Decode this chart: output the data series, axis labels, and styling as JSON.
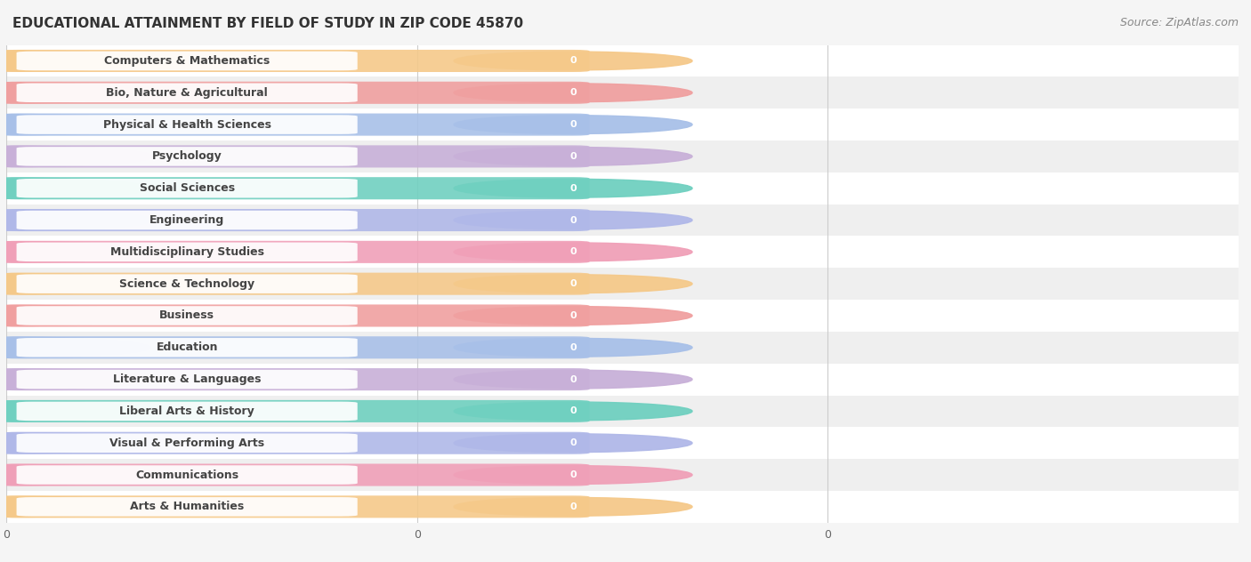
{
  "title": "EDUCATIONAL ATTAINMENT BY FIELD OF STUDY IN ZIP CODE 45870",
  "source": "Source: ZipAtlas.com",
  "categories": [
    "Computers & Mathematics",
    "Bio, Nature & Agricultural",
    "Physical & Health Sciences",
    "Psychology",
    "Social Sciences",
    "Engineering",
    "Multidisciplinary Studies",
    "Science & Technology",
    "Business",
    "Education",
    "Literature & Languages",
    "Liberal Arts & History",
    "Visual & Performing Arts",
    "Communications",
    "Arts & Humanities"
  ],
  "values": [
    0,
    0,
    0,
    0,
    0,
    0,
    0,
    0,
    0,
    0,
    0,
    0,
    0,
    0,
    0
  ],
  "bar_colors": [
    "#f5c98a",
    "#f0a0a0",
    "#a8c0e8",
    "#c8b0d8",
    "#70d0c0",
    "#b0b8e8",
    "#f0a0b8",
    "#f5c98a",
    "#f0a0a0",
    "#a8c0e8",
    "#c8b0d8",
    "#70d0c0",
    "#b0b8e8",
    "#f0a0b8",
    "#f5c98a"
  ],
  "background_color": "#f5f5f5",
  "row_bg_even": "#ffffff",
  "row_bg_odd": "#efefef",
  "grid_color": "#cccccc",
  "xlim_max": 3,
  "title_fontsize": 11,
  "source_fontsize": 9,
  "bar_label_fontsize": 8,
  "category_fontsize": 9,
  "xtick_positions": [
    0,
    1,
    2
  ],
  "xtick_labels": [
    "0",
    "0",
    "0"
  ]
}
